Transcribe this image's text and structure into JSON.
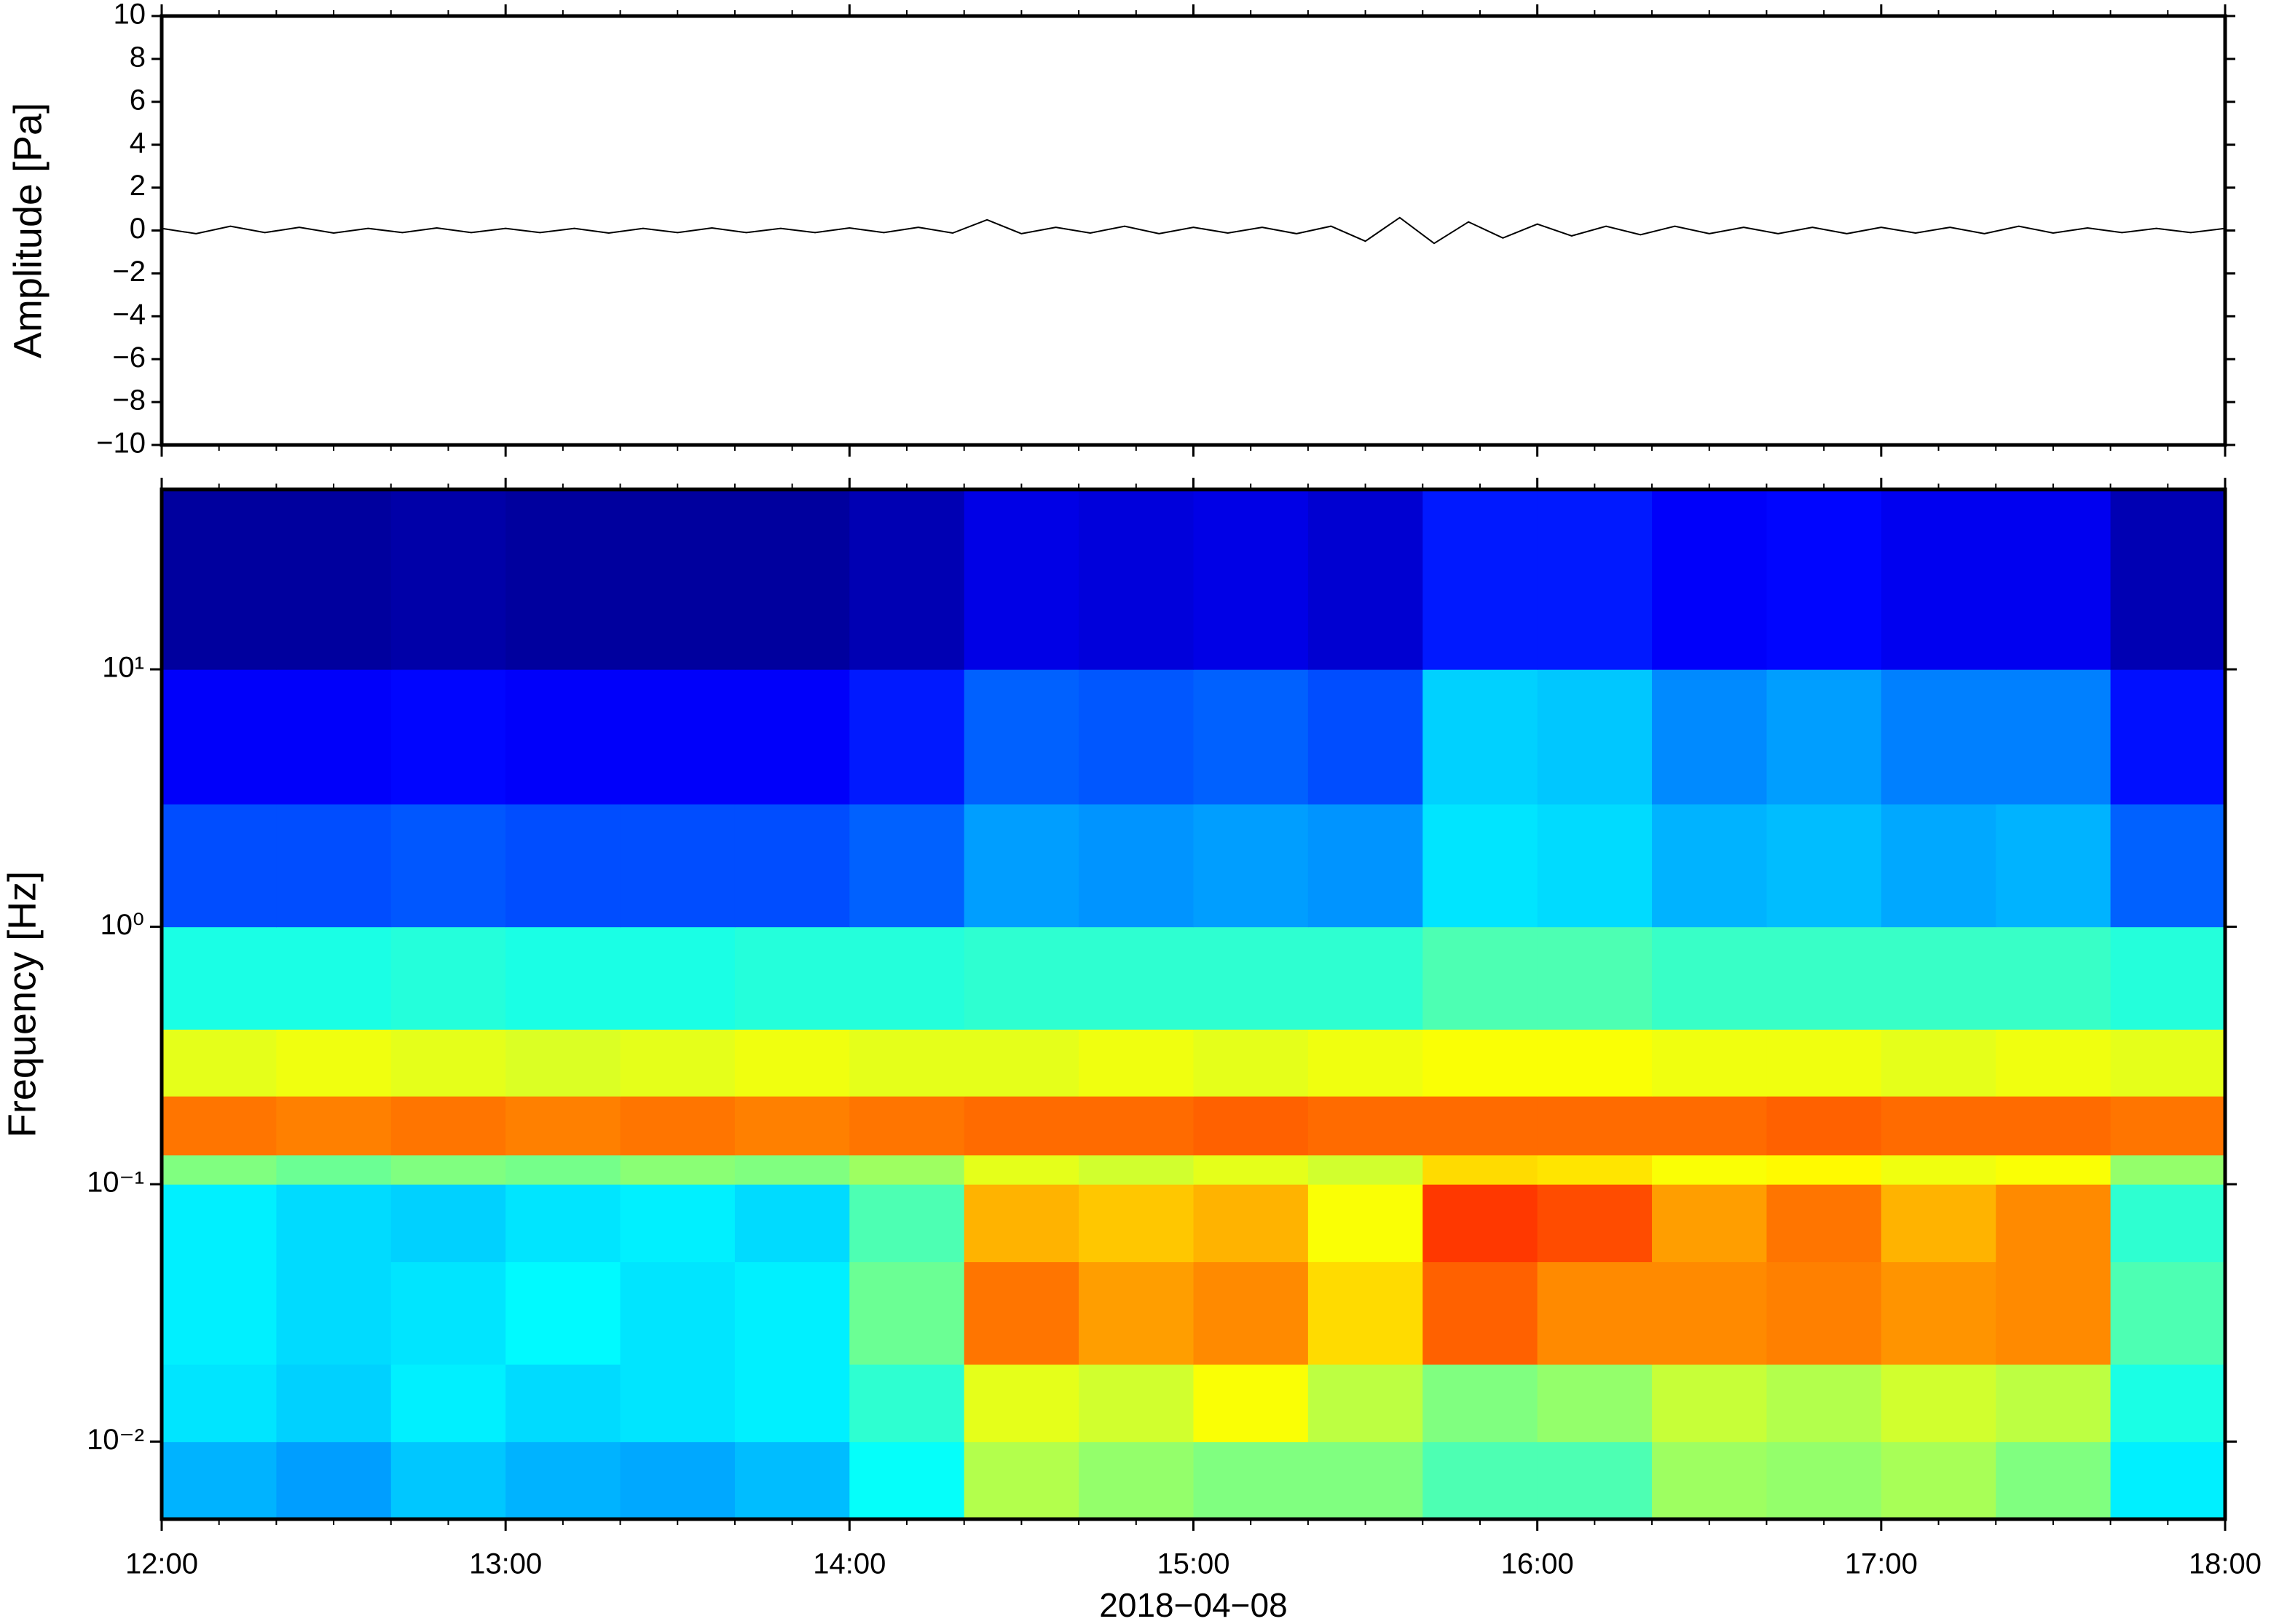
{
  "chart_data": [
    {
      "type": "line",
      "y_label": "Amplitude [Pa]",
      "color": "#000000",
      "x": [
        "12:00",
        "12:06",
        "12:12",
        "12:18",
        "12:24",
        "12:30",
        "12:36",
        "12:42",
        "12:48",
        "12:54",
        "13:00",
        "13:06",
        "13:12",
        "13:18",
        "13:24",
        "13:30",
        "13:36",
        "13:42",
        "13:48",
        "13:54",
        "14:00",
        "14:06",
        "14:12",
        "14:18",
        "14:24",
        "14:30",
        "14:36",
        "14:42",
        "14:48",
        "14:54",
        "15:00",
        "15:06",
        "15:12",
        "15:18",
        "15:24",
        "15:30",
        "15:36",
        "15:42",
        "15:48",
        "15:54",
        "16:00",
        "16:06",
        "16:12",
        "16:18",
        "16:24",
        "16:30",
        "16:36",
        "16:42",
        "16:48",
        "16:54",
        "17:00",
        "17:06",
        "17:12",
        "17:18",
        "17:24",
        "17:30",
        "17:36",
        "17:42",
        "17:48",
        "17:54",
        "18:00"
      ],
      "values": [
        0.1,
        -0.15,
        0.2,
        -0.1,
        0.15,
        -0.12,
        0.1,
        -0.1,
        0.12,
        -0.1,
        0.1,
        -0.1,
        0.1,
        -0.12,
        0.1,
        -0.1,
        0.12,
        -0.1,
        0.1,
        -0.1,
        0.12,
        -0.1,
        0.15,
        -0.12,
        0.5,
        -0.15,
        0.15,
        -0.12,
        0.2,
        -0.15,
        0.15,
        -0.12,
        0.15,
        -0.15,
        0.2,
        -0.5,
        0.6,
        -0.6,
        0.4,
        -0.35,
        0.3,
        -0.25,
        0.2,
        -0.2,
        0.2,
        -0.15,
        0.15,
        -0.15,
        0.15,
        -0.15,
        0.15,
        -0.12,
        0.15,
        -0.15,
        0.2,
        -0.12,
        0.12,
        -0.1,
        0.1,
        -0.1,
        0.1
      ],
      "xlim": [
        "12:00",
        "18:00"
      ],
      "ylim": [
        -10,
        10
      ],
      "yticks": [
        {
          "value": -10,
          "label": "−10"
        },
        {
          "value": -8,
          "label": "−8"
        },
        {
          "value": -6,
          "label": "−6"
        },
        {
          "value": -4,
          "label": "−4"
        },
        {
          "value": -2,
          "label": "−2"
        },
        0,
        2,
        4,
        6,
        8,
        10
      ]
    },
    {
      "type": "heatmap",
      "x_label": "2018−04−08",
      "y_label": "Frequency [Hz]",
      "colormap": "jet",
      "zlim": [
        0,
        1
      ],
      "log_y": true,
      "x": [
        "12:00",
        "12:20",
        "12:40",
        "13:00",
        "13:20",
        "13:40",
        "14:00",
        "14:20",
        "14:40",
        "15:00",
        "15:20",
        "15:40",
        "16:00",
        "16:20",
        "16:40",
        "17:00",
        "17:20",
        "17:40",
        "18:00"
      ],
      "y": [
        0.005,
        0.01,
        0.02,
        0.05,
        0.1,
        0.13,
        0.22,
        0.4,
        1,
        3,
        10,
        50
      ],
      "z": [
        [
          0.3,
          0.28,
          0.32,
          0.3,
          0.29,
          0.31,
          0.38,
          0.55,
          0.52,
          0.5,
          0.5,
          0.45,
          0.45,
          0.53,
          0.52,
          0.54,
          0.5,
          0.36
        ],
        [
          0.35,
          0.33,
          0.36,
          0.34,
          0.35,
          0.36,
          0.42,
          0.6,
          0.58,
          0.62,
          0.56,
          0.5,
          0.52,
          0.57,
          0.55,
          0.58,
          0.56,
          0.4
        ],
        [
          0.36,
          0.34,
          0.35,
          0.37,
          0.35,
          0.36,
          0.48,
          0.76,
          0.72,
          0.74,
          0.66,
          0.78,
          0.74,
          0.74,
          0.75,
          0.73,
          0.74,
          0.45
        ],
        [
          0.36,
          0.34,
          0.33,
          0.35,
          0.36,
          0.34,
          0.45,
          0.7,
          0.68,
          0.7,
          0.62,
          0.82,
          0.8,
          0.72,
          0.76,
          0.7,
          0.74,
          0.42
        ],
        [
          0.5,
          0.48,
          0.5,
          0.49,
          0.51,
          0.5,
          0.53,
          0.6,
          0.58,
          0.6,
          0.58,
          0.66,
          0.65,
          0.62,
          0.63,
          0.61,
          0.62,
          0.52
        ],
        [
          0.76,
          0.75,
          0.76,
          0.75,
          0.76,
          0.75,
          0.76,
          0.77,
          0.77,
          0.78,
          0.77,
          0.77,
          0.77,
          0.77,
          0.78,
          0.77,
          0.77,
          0.76
        ],
        [
          0.6,
          0.61,
          0.6,
          0.59,
          0.6,
          0.61,
          0.6,
          0.6,
          0.61,
          0.6,
          0.61,
          0.62,
          0.62,
          0.61,
          0.61,
          0.6,
          0.61,
          0.6
        ],
        [
          0.4,
          0.4,
          0.41,
          0.4,
          0.4,
          0.41,
          0.41,
          0.42,
          0.42,
          0.42,
          0.42,
          0.45,
          0.45,
          0.43,
          0.43,
          0.43,
          0.43,
          0.41
        ],
        [
          0.2,
          0.2,
          0.21,
          0.2,
          0.2,
          0.2,
          0.22,
          0.28,
          0.27,
          0.28,
          0.27,
          0.35,
          0.34,
          0.3,
          0.31,
          0.29,
          0.3,
          0.22
        ],
        [
          0.12,
          0.12,
          0.13,
          0.12,
          0.12,
          0.12,
          0.15,
          0.22,
          0.21,
          0.22,
          0.2,
          0.33,
          0.32,
          0.26,
          0.28,
          0.25,
          0.25,
          0.14
        ],
        [
          0.03,
          0.03,
          0.04,
          0.03,
          0.03,
          0.03,
          0.05,
          0.1,
          0.09,
          0.1,
          0.08,
          0.15,
          0.15,
          0.12,
          0.13,
          0.11,
          0.11,
          0.05
        ]
      ],
      "xlim": [
        "12:00",
        "18:00"
      ],
      "xticks": [
        "12:00",
        "13:00",
        "14:00",
        "15:00",
        "16:00",
        "17:00",
        "18:00"
      ],
      "ylim": [
        0.005,
        50
      ],
      "yticks": [
        {
          "value": 0.01,
          "label": "10⁻²"
        },
        {
          "value": 0.1,
          "label": "10⁻¹"
        },
        {
          "value": 1,
          "label": "10⁰"
        },
        {
          "value": 10,
          "label": "10¹"
        }
      ]
    }
  ]
}
